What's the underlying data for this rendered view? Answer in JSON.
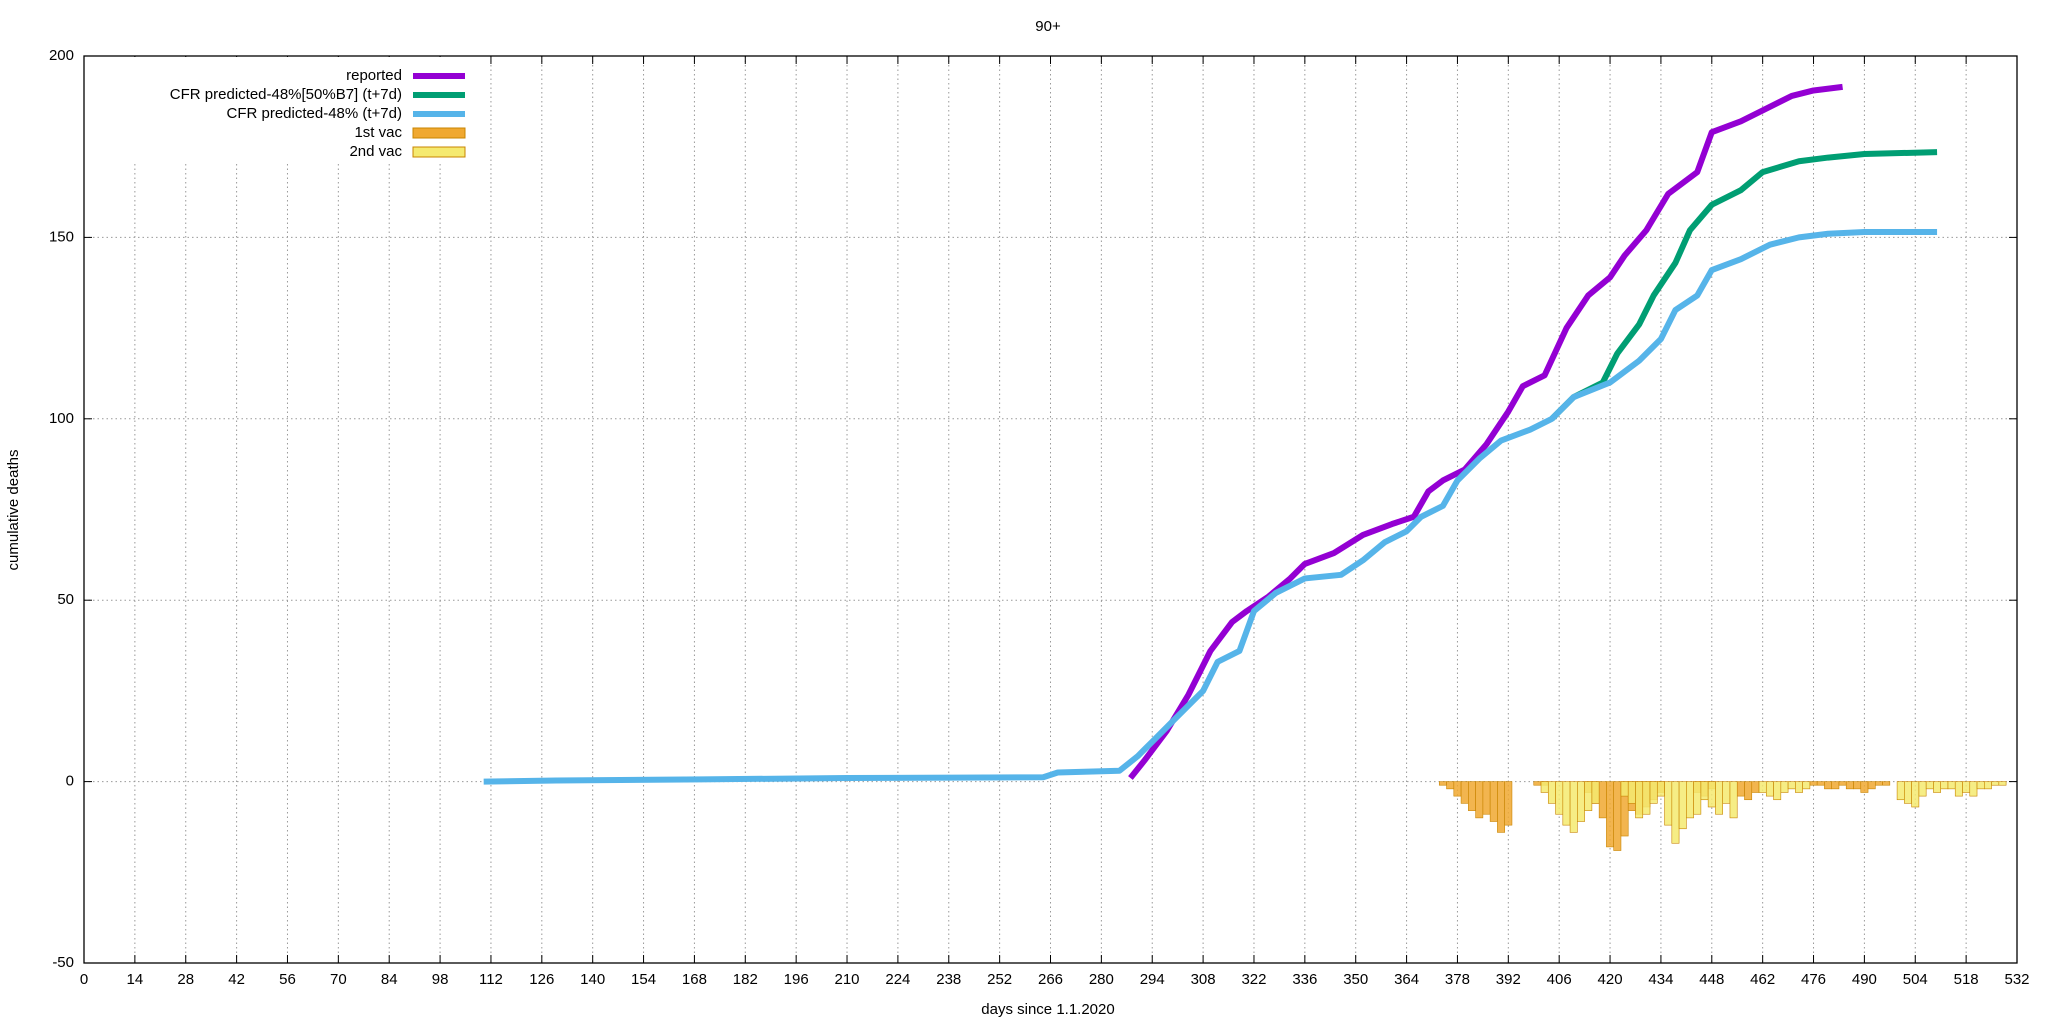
{
  "chart_data": {
    "type": "line",
    "title": "90+",
    "xlabel": "days since 1.1.2020",
    "ylabel": "cumulative deaths",
    "xlim": [
      0,
      532
    ],
    "ylim": [
      -50,
      200
    ],
    "xticks": [
      0,
      14,
      28,
      42,
      56,
      70,
      84,
      98,
      112,
      126,
      140,
      154,
      168,
      182,
      196,
      210,
      224,
      238,
      252,
      266,
      280,
      294,
      308,
      322,
      336,
      350,
      364,
      378,
      392,
      406,
      420,
      434,
      448,
      462,
      476,
      490,
      504,
      518,
      532
    ],
    "yticks": [
      -50,
      0,
      50,
      100,
      150,
      200
    ],
    "grid": true,
    "legend": "top-left",
    "series": [
      {
        "name": "reported",
        "type": "line",
        "color": "#9400d3",
        "x": [
          288,
          292,
          298,
          304,
          310,
          316,
          320,
          326,
          332,
          336,
          344,
          352,
          360,
          366,
          370,
          374,
          380,
          386,
          392,
          396,
          402,
          408,
          414,
          420,
          424,
          430,
          436,
          444,
          448,
          456,
          462,
          470,
          476,
          484
        ],
        "values": [
          1,
          6,
          14,
          24,
          36,
          44,
          47,
          51,
          56,
          60,
          63,
          68,
          71,
          73,
          80,
          83,
          86,
          93,
          102,
          109,
          112,
          125,
          134,
          139,
          145,
          152,
          162,
          168,
          179,
          182,
          185,
          189,
          190.5,
          191.5
        ]
      },
      {
        "name": "CFR predicted-48%[50%B7] (t+7d)",
        "type": "line",
        "color": "#009e73",
        "x": [
          404,
          410,
          418,
          422,
          428,
          432,
          438,
          442,
          448,
          456,
          462,
          472,
          480,
          490,
          510
        ],
        "values": [
          100,
          106,
          110,
          118,
          126,
          134,
          143,
          152,
          159,
          163,
          168,
          171,
          172,
          173,
          173.5
        ]
      },
      {
        "name": "CFR predicted-48% (t+7d)",
        "type": "line",
        "color": "#56b4e9",
        "x": [
          110,
          130,
          170,
          210,
          240,
          264,
          268,
          285,
          290,
          294,
          300,
          308,
          312,
          318,
          322,
          328,
          336,
          346,
          352,
          358,
          364,
          368,
          374,
          378,
          384,
          390,
          398,
          404,
          410,
          420,
          428,
          434,
          438,
          444,
          448,
          456,
          464,
          472,
          480,
          490,
          510
        ],
        "values": [
          0,
          0.3,
          0.6,
          1,
          1.1,
          1.2,
          2.5,
          3,
          7,
          11,
          17,
          25,
          33,
          36,
          47,
          52,
          56,
          57,
          61,
          66,
          69,
          73,
          76,
          83,
          89,
          94,
          97,
          100,
          106,
          110,
          116,
          122,
          130,
          134,
          141,
          144,
          148,
          150,
          151,
          151.5,
          151.5
        ]
      },
      {
        "name": "1st vac",
        "type": "bar",
        "color": "#f0a830",
        "x": [
          374,
          376,
          378,
          380,
          382,
          384,
          386,
          388,
          390,
          392,
          400,
          402,
          414,
          416,
          418,
          420,
          422,
          424,
          426,
          428,
          430,
          432,
          434,
          444,
          446,
          448,
          456,
          458,
          460,
          476,
          478,
          480,
          482,
          484,
          486,
          488,
          490,
          492,
          494,
          496
        ],
        "values": [
          -1,
          -2,
          -4,
          -6,
          -8,
          -10,
          -9,
          -11,
          -14,
          -12,
          -1,
          -1,
          -3,
          -6,
          -10,
          -18,
          -19,
          -15,
          -8,
          -9,
          -7,
          -5,
          -3,
          -3,
          -4,
          -2,
          -4,
          -5,
          -3,
          -1,
          -1,
          -2,
          -2,
          -1,
          -2,
          -2,
          -3,
          -2,
          -1,
          -1
        ]
      },
      {
        "name": "2nd vac",
        "type": "bar",
        "color": "#f5ea70",
        "x": [
          402,
          404,
          406,
          408,
          410,
          412,
          414,
          416,
          424,
          426,
          428,
          430,
          432,
          434,
          436,
          438,
          440,
          442,
          444,
          446,
          448,
          450,
          452,
          454,
          462,
          464,
          466,
          468,
          470,
          472,
          474,
          500,
          502,
          504,
          506,
          508,
          510,
          512,
          514,
          516,
          518,
          520,
          522,
          524,
          526,
          528
        ],
        "values": [
          -3,
          -6,
          -9,
          -12,
          -14,
          -11,
          -8,
          -6,
          -4,
          -6,
          -10,
          -9,
          -6,
          -4,
          -12,
          -17,
          -13,
          -10,
          -9,
          -5,
          -7,
          -9,
          -6,
          -10,
          -3,
          -4,
          -5,
          -3,
          -2,
          -3,
          -2,
          -5,
          -6,
          -7,
          -4,
          -2,
          -3,
          -2,
          -2,
          -4,
          -3,
          -4,
          -2,
          -2,
          -1,
          -1
        ]
      }
    ]
  }
}
